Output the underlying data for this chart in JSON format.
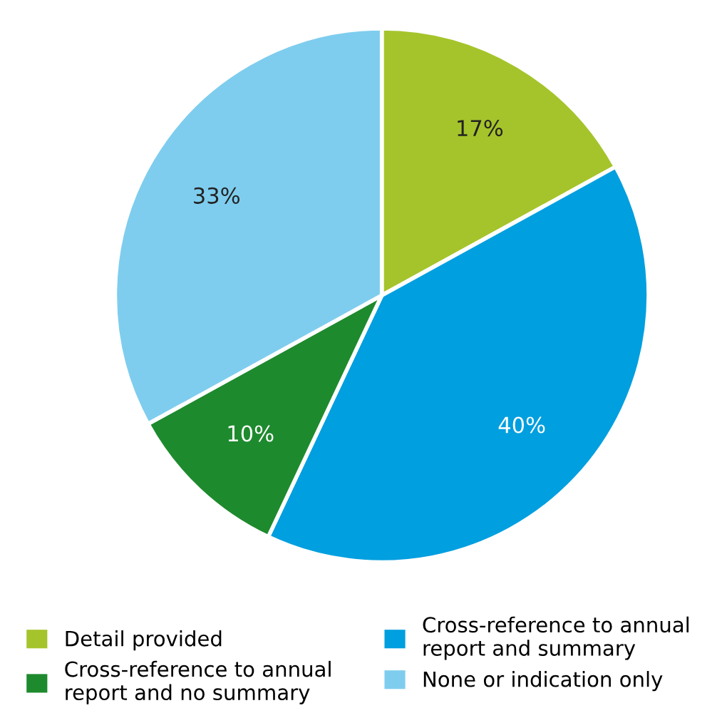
{
  "chart_data": {
    "type": "pie",
    "categories": [
      "Detail provided",
      "Cross-reference to annual\nreport and summary",
      "Cross-reference to annual\nreport and no summary",
      "None or indication only"
    ],
    "values": [
      17,
      40,
      10,
      33
    ],
    "colors": [
      "#a5c42b",
      "#009fdf",
      "#1e8a2e",
      "#7ecdee"
    ],
    "value_labels": [
      "17%",
      "40%",
      "10%",
      "33%"
    ],
    "legend": "bottom"
  }
}
